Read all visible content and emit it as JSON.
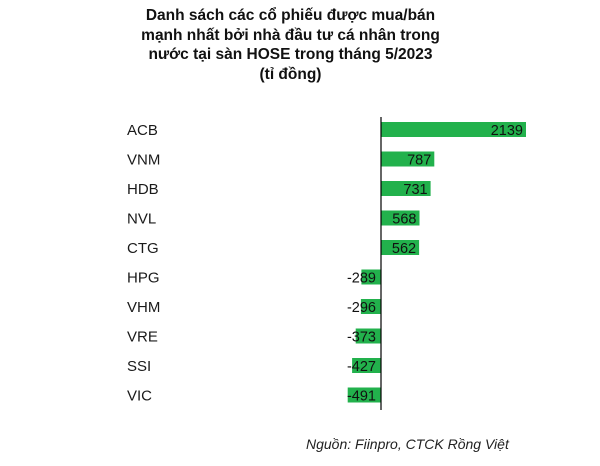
{
  "title_lines": [
    "Danh sách các cổ phiếu được mua/bán",
    "mạnh nhất bởi nhà đầu tư cá nhân trong",
    "nước tại sàn HOSE trong tháng 5/2023",
    "(tỉ đồng)"
  ],
  "source": "Nguồn: Fiinpro, CTCK Rồng Việt",
  "colors": {
    "bar": "#22b14c",
    "axis": "#000000",
    "text": "#1a1a1a"
  },
  "chart_data": {
    "type": "bar",
    "orientation": "horizontal",
    "title": "Danh sách các cổ phiếu được mua/bán mạnh nhất bởi nhà đầu tư cá nhân trong nước tại sàn HOSE trong tháng 5/2023 (tỉ đồng)",
    "categories": [
      "ACB",
      "VNM",
      "HDB",
      "NVL",
      "CTG",
      "HPG",
      "VHM",
      "VRE",
      "SSI",
      "VIC"
    ],
    "values": [
      2139,
      787,
      731,
      568,
      562,
      -289,
      -296,
      -373,
      -427,
      -491
    ],
    "data_labels": [
      "2139",
      "787",
      "731",
      "568",
      "562",
      "-289",
      "-296",
      "-373",
      "-427",
      "-491"
    ],
    "xlim": [
      -600,
      2139
    ],
    "grid": false,
    "legend": "none"
  }
}
